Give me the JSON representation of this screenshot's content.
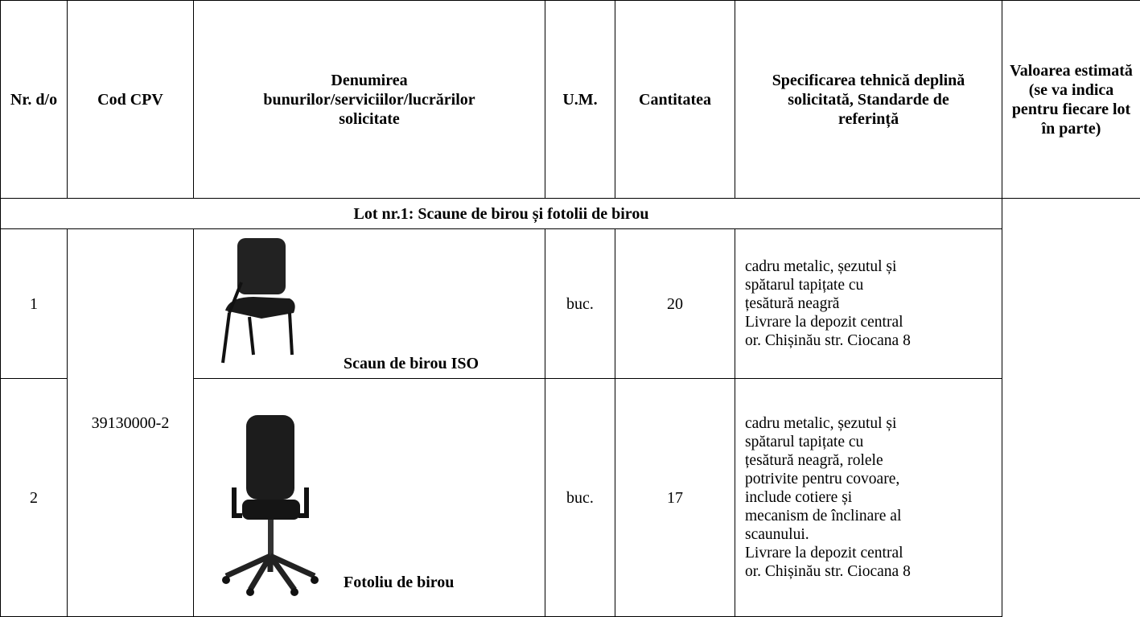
{
  "table": {
    "headers": [
      "Nr. d/o",
      "Cod CPV",
      "Denumirea bunurilor/serviciilor/lucrărilor solicitate",
      "U.M.",
      "Cantitatea",
      "Specificarea tehnică deplină solicitată, Standarde de referință",
      "Valoarea estimată (se va indica pentru fiecare lot în parte)"
    ],
    "lot_title": "Lot nr.1: Scaune de birou și fotolii de birou",
    "cpv_code": "39130000-2",
    "rows": [
      {
        "nr": 1,
        "name": "Scaun de birou ISO",
        "unit": "buc.",
        "quantity": 20,
        "specification": [
          "cadru metalic, șezutul și",
          "spătarul tapițate cu",
          "țesătură neagră",
          "Livrare la depozit central",
          "or. Chișinău str. Ciocana 8"
        ]
      },
      {
        "nr": 2,
        "name": "Fotoliu de birou",
        "unit": "buc.",
        "quantity": 17,
        "specification": [
          "cadru metalic, șezutul și",
          "spătarul tapițate cu",
          "țesătură neagră, rolele",
          "potrivite pentru covoare,",
          "include cotiere și",
          "mecanism de înclinare al",
          "scaunului.",
          "Livrare la depozit central",
          "or. Chișinău str. Ciocana 8"
        ]
      }
    ]
  }
}
